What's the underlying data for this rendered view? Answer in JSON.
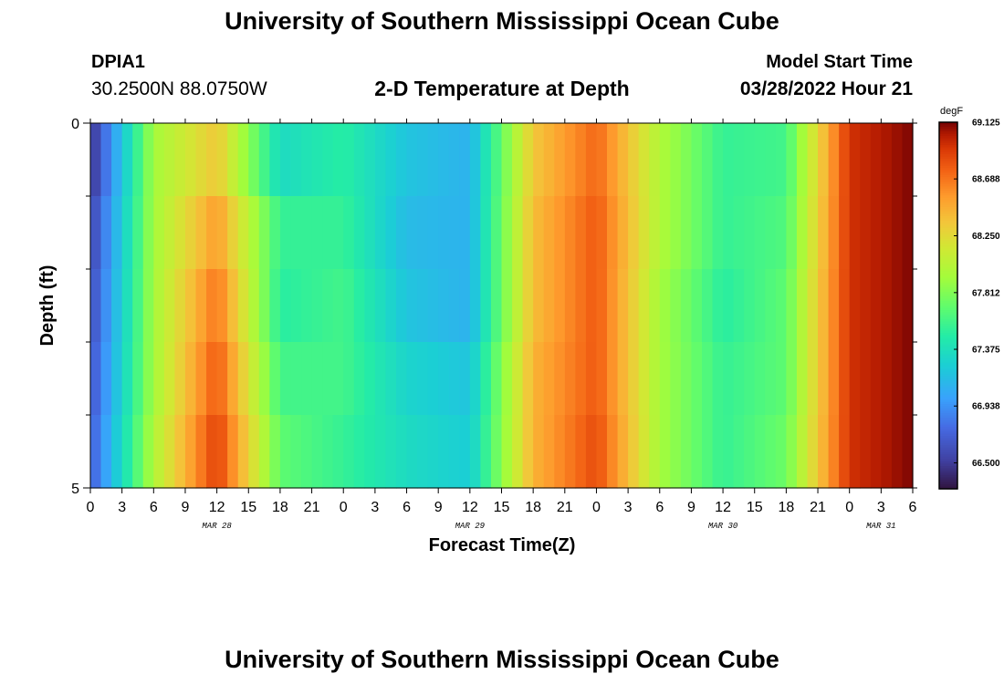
{
  "header": {
    "title": "University of Southern Mississippi Ocean Cube",
    "station_id": "DPIA1",
    "station_coords": "30.2500N  88.0750W",
    "plot_title": "2-D Temperature at Depth",
    "model_start_label": "Model Start Time",
    "model_start_value": "03/28/2022 Hour 21"
  },
  "footer": {
    "title": "University of Southern Mississippi Ocean Cube"
  },
  "chart_data": {
    "type": "heatmap",
    "title": "2-D Temperature at Depth",
    "xlabel": "Forecast Time(Z)",
    "ylabel": "Depth (ft)",
    "x_tick_labels": [
      "0",
      "3",
      "6",
      "9",
      "12",
      "15",
      "18",
      "21",
      "0",
      "3",
      "6",
      "9",
      "12",
      "15",
      "18",
      "21",
      "0",
      "3",
      "6",
      "9",
      "12",
      "15",
      "18",
      "21",
      "0",
      "3",
      "6"
    ],
    "date_labels": [
      {
        "label": "MAR 28",
        "hour_index": 12
      },
      {
        "label": "MAR 29",
        "hour_index": 36
      },
      {
        "label": "MAR 30",
        "hour_index": 60
      },
      {
        "label": "MAR 31",
        "hour_index": 75
      }
    ],
    "x_hours_range": [
      0,
      78
    ],
    "y_range": [
      0,
      5
    ],
    "y_tick_labels": [
      "0",
      "5"
    ],
    "depth_rows": [
      0,
      1,
      2,
      3,
      4
    ],
    "colorbar": {
      "unit": "degF",
      "min": 66.3,
      "max": 69.125,
      "tick_labels": [
        "69.125",
        "68.688",
        "68.250",
        "67.812",
        "67.375",
        "66.938",
        "66.500"
      ],
      "tick_values": [
        69.125,
        68.688,
        68.25,
        67.812,
        67.375,
        66.938,
        66.5
      ]
    },
    "time_hours": [
      0,
      6,
      12,
      18,
      24,
      30,
      36,
      42,
      48,
      54,
      60,
      66,
      72,
      78
    ],
    "temperature_degF": [
      [
        66.45,
        67.95,
        68.35,
        67.35,
        67.5,
        67.2,
        67.1,
        68.35,
        68.75,
        68.0,
        67.55,
        67.6,
        68.95,
        69.12
      ],
      [
        66.55,
        67.95,
        68.55,
        67.55,
        67.55,
        67.15,
        67.1,
        68.4,
        68.8,
        68.0,
        67.55,
        67.65,
        68.95,
        69.12
      ],
      [
        66.6,
        67.95,
        68.7,
        67.5,
        67.6,
        67.2,
        67.1,
        68.4,
        68.8,
        67.95,
        67.5,
        67.7,
        68.95,
        69.12
      ],
      [
        66.65,
        67.95,
        68.8,
        67.6,
        67.6,
        67.3,
        67.2,
        68.45,
        68.8,
        67.95,
        67.55,
        67.7,
        68.95,
        69.12
      ],
      [
        66.7,
        68.0,
        68.9,
        67.7,
        67.55,
        67.35,
        67.25,
        68.45,
        68.85,
        67.95,
        67.55,
        67.75,
        68.95,
        69.12
      ]
    ],
    "grid": false
  }
}
